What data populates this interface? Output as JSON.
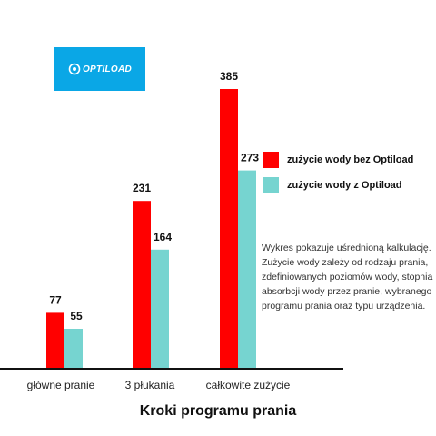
{
  "logo": {
    "text": "OPTILOAD",
    "background": "#0aa7e6"
  },
  "legend": [
    {
      "label": "zużycie wody bez Optiload",
      "color": "#ff0000"
    },
    {
      "label": "zużycie wody z Optiload",
      "color": "#76d4d0"
    }
  ],
  "note": "Wykres pokazuje uśrednioną kalkulację. Zużycie wody zależy od rodzaju prania, zdefiniowanych poziomów wody, stopnia absorbcji wody przez pranie, wybranego programu prania oraz typu urządzenia.",
  "chart_data": {
    "type": "bar",
    "categories": [
      "główne pranie",
      "3 płukania",
      "całkowite zużycie"
    ],
    "series": [
      {
        "name": "zużycie wody bez Optiload",
        "values": [
          77,
          231,
          385
        ],
        "color": "#ff0000"
      },
      {
        "name": "zużycie wody z Optiload",
        "values": [
          55,
          164,
          273
        ],
        "color": "#76d4d0"
      }
    ],
    "xlabel": "Kroki programu prania",
    "ylabel": "",
    "ylim": [
      0,
      400
    ],
    "grid": false,
    "legend_position": "right"
  }
}
